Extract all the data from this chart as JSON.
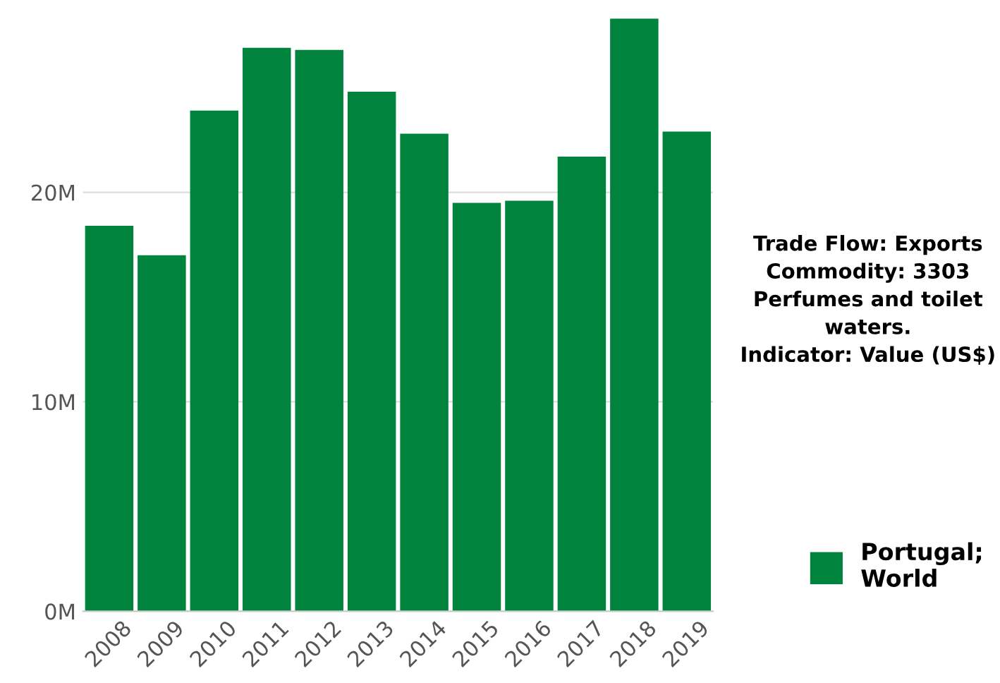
{
  "chart_data": {
    "type": "bar",
    "categories": [
      "2008",
      "2009",
      "2010",
      "2011",
      "2012",
      "2013",
      "2014",
      "2015",
      "2016",
      "2017",
      "2018",
      "2019"
    ],
    "series": [
      {
        "name": "Portugal;\nWorld",
        "color": "#00843d",
        "values": [
          18.4,
          17.0,
          23.9,
          26.9,
          26.8,
          24.8,
          22.8,
          19.5,
          19.6,
          21.7,
          28.3,
          22.9
        ]
      }
    ],
    "ylim": [
      0,
      28.3
    ],
    "yticks": [
      {
        "value": 0,
        "label": "0M"
      },
      {
        "value": 10,
        "label": "10M"
      },
      {
        "value": 20,
        "label": "20M"
      }
    ],
    "grid": "y",
    "legend": "right",
    "annotations": [
      "Trade Flow: Exports\nCommodity: 3303\nPerfumes and toilet\nwaters.\nIndicator: Value (US$)"
    ]
  }
}
